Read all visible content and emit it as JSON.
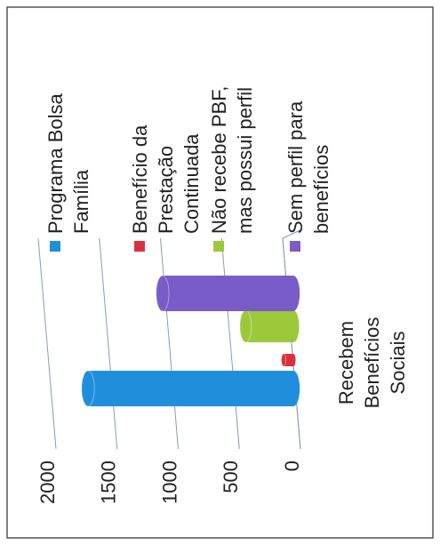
{
  "chart_data": {
    "type": "bar",
    "categories": [
      "Recebem Benefícios Sociais"
    ],
    "series": [
      {
        "name": "Programa Bolsa Família",
        "color": "#1f8fdc",
        "values": [
          1680
        ]
      },
      {
        "name": "Benefício da Prestação Continuada",
        "color": "#d9303f",
        "values": [
          80
        ]
      },
      {
        "name": "Não recebe PBF, mas possui perfil",
        "color": "#9dc83a",
        "values": [
          390
        ]
      },
      {
        "name": "Sem perfil para benefícios",
        "color": "#7a5cc8",
        "values": [
          1070
        ]
      }
    ],
    "ylim": [
      0,
      2000
    ],
    "yticks": [
      0,
      500,
      1000,
      1500,
      2000
    ],
    "grid": true,
    "legend": "right"
  }
}
